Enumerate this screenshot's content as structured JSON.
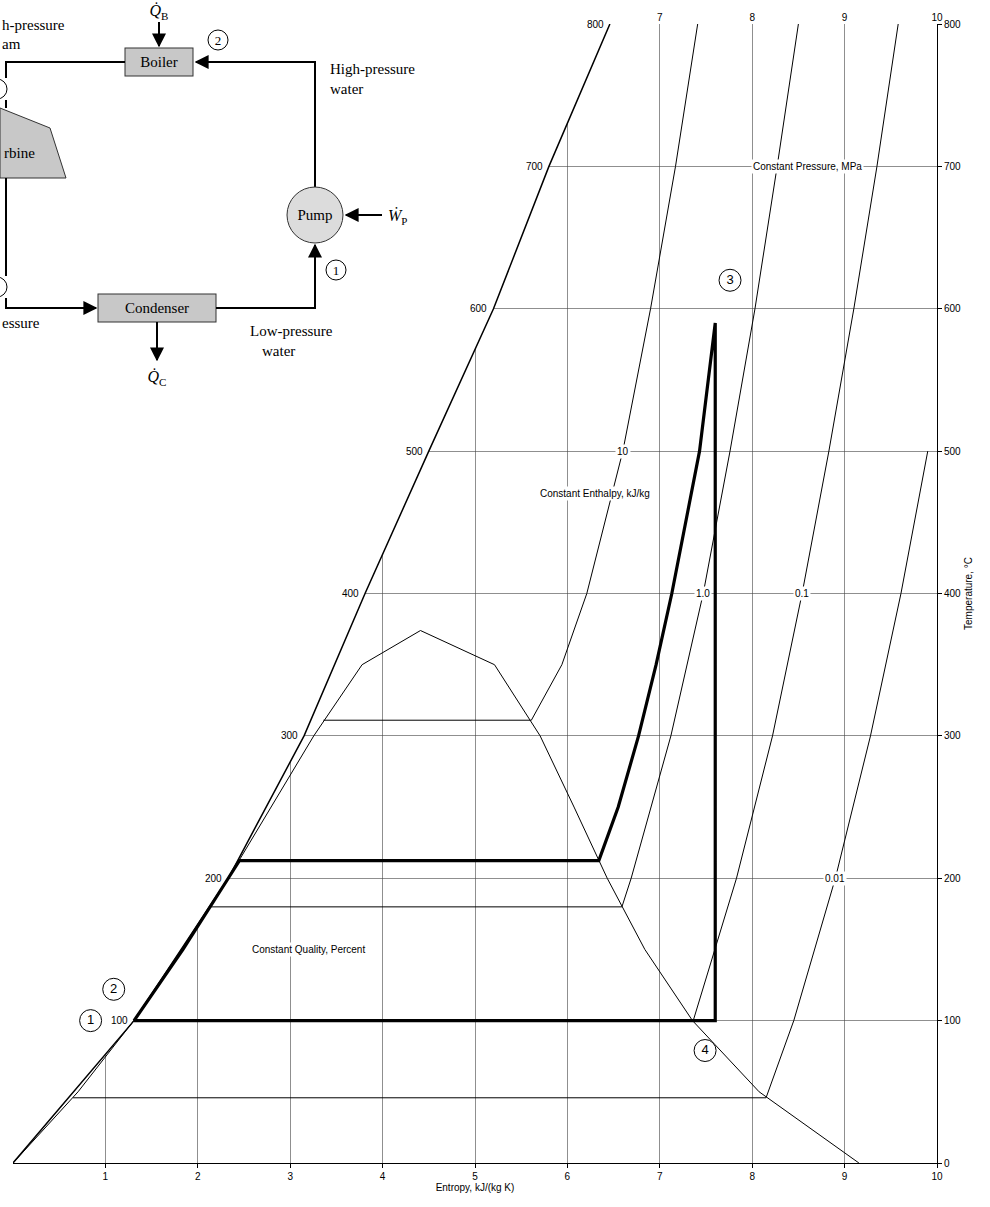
{
  "chart_data": {
    "type": "line",
    "x_label": "Entropy, kJ/(kg K)",
    "y_label": "Temperature, °C",
    "xlim": [
      0,
      10
    ],
    "xticks": [
      1,
      2,
      3,
      4,
      5,
      6,
      7,
      8,
      9,
      10
    ],
    "x2ticks": [
      7,
      8,
      9,
      10
    ],
    "ylim": [
      0,
      800
    ],
    "yticks": [
      0,
      100,
      200,
      300,
      400,
      500,
      600,
      700,
      800
    ],
    "grid": true,
    "boundary": {
      "x": [
        0,
        1.31,
        2.33,
        3.15,
        3.81,
        4.5,
        5.2,
        5.8,
        6.46
      ],
      "values": [
        0,
        100,
        200,
        300,
        400,
        500,
        600,
        700,
        800
      ]
    },
    "boundary_labels": [
      {
        "x": 1.31,
        "y": 100,
        "text": "100"
      },
      {
        "x": 2.33,
        "y": 200,
        "text": "200"
      },
      {
        "x": 3.15,
        "y": 300,
        "text": "300"
      },
      {
        "x": 3.81,
        "y": 400,
        "text": "400"
      },
      {
        "x": 4.5,
        "y": 500,
        "text": "500"
      },
      {
        "x": 5.2,
        "y": 600,
        "text": "600"
      },
      {
        "x": 5.8,
        "y": 700,
        "text": "700"
      },
      {
        "x": 6.46,
        "y": 800,
        "text": "800"
      }
    ],
    "series": [
      {
        "x": [
          0,
          0.704,
          1.307,
          1.842,
          2.331,
          2.793,
          3.255,
          3.778,
          4.41,
          5.211,
          5.705,
          6.072,
          6.431,
          6.838,
          7.354,
          8.075,
          9.155
        ],
        "values": [
          0,
          50,
          100,
          150,
          200,
          250,
          300,
          350,
          374,
          350,
          300,
          250,
          200,
          150,
          100,
          50,
          0
        ],
        "color": "#000000",
        "line_style": "solid"
      },
      {
        "x": [
          1.31,
          1.84,
          2.33,
          2.45,
          6.34,
          6.55,
          6.77,
          6.96,
          7.13,
          7.28,
          7.43,
          7.6,
          7.6,
          1.31
        ],
        "values": [
          100,
          150,
          200,
          212.4,
          212.4,
          250,
          300,
          350,
          400,
          450,
          500,
          590,
          100,
          100
        ],
        "color": "#000000",
        "line_style": "bold"
      },
      {
        "name": "0.01",
        "x": [
          0.65,
          8.15,
          8.45,
          8.9,
          9.28,
          9.61,
          9.9
        ],
        "values": [
          45.8,
          45.8,
          100,
          200,
          300,
          400,
          500
        ],
        "color": "#000000",
        "line_style": "solid"
      },
      {
        "name": "0.1",
        "x": [
          1.3,
          7.36,
          7.83,
          8.22,
          8.54,
          8.83,
          9.1,
          9.35,
          9.58
        ],
        "values": [
          99.6,
          99.6,
          200,
          300,
          400,
          500,
          600,
          700,
          800
        ],
        "color": "#000000",
        "line_style": "solid"
      },
      {
        "name": "1.0",
        "x": [
          2.14,
          6.59,
          6.69,
          7.12,
          7.47,
          7.76,
          8.03,
          8.27,
          8.5
        ],
        "values": [
          179.9,
          179.9,
          200,
          300,
          400,
          500,
          600,
          700,
          800
        ],
        "color": "#000000",
        "line_style": "solid"
      },
      {
        "name": "10",
        "x": [
          3.36,
          5.61,
          5.94,
          6.21,
          6.6,
          6.9,
          7.17,
          7.41
        ],
        "values": [
          311,
          311,
          350,
          400,
          500,
          600,
          700,
          800
        ],
        "color": "#000000",
        "line_style": "solid"
      }
    ],
    "points": [
      {
        "text": "1",
        "x": 0.84,
        "y": 100
      },
      {
        "text": "2",
        "x": 1.09,
        "y": 122
      },
      {
        "text": "3",
        "x": 7.76,
        "y": 620
      },
      {
        "text": "4",
        "x": 7.49,
        "y": 79
      }
    ],
    "annotations": [
      {
        "text": "Constant Pressure, MPa",
        "x": 8.6,
        "y": 700
      },
      {
        "text": "Constant Enthalpy, kJ/kg",
        "x": 6.3,
        "y": 470
      },
      {
        "text": "Constant Quality, Percent",
        "x": 3.2,
        "y": 150
      }
    ]
  },
  "schematic": {
    "boiler": "Boiler",
    "pump": "Pump",
    "condenser": "Condenser",
    "turbine": "rbine",
    "heat_in": {
      "symbol": "Q̇",
      "subscript": "B"
    },
    "heat_out": {
      "symbol": "Q̇",
      "subscript": "C"
    },
    "pump_work": {
      "symbol": "Ẇ",
      "subscript": "P"
    },
    "state_labels": {
      "pump_inlet": "1",
      "boiler_inlet": "2"
    },
    "steam_in": [
      "h-pressure",
      "am"
    ],
    "hp_water": [
      "High-pressure",
      "water"
    ],
    "lp_water": [
      "Low-pressure",
      "water"
    ],
    "exhaust": [
      "essure"
    ]
  }
}
